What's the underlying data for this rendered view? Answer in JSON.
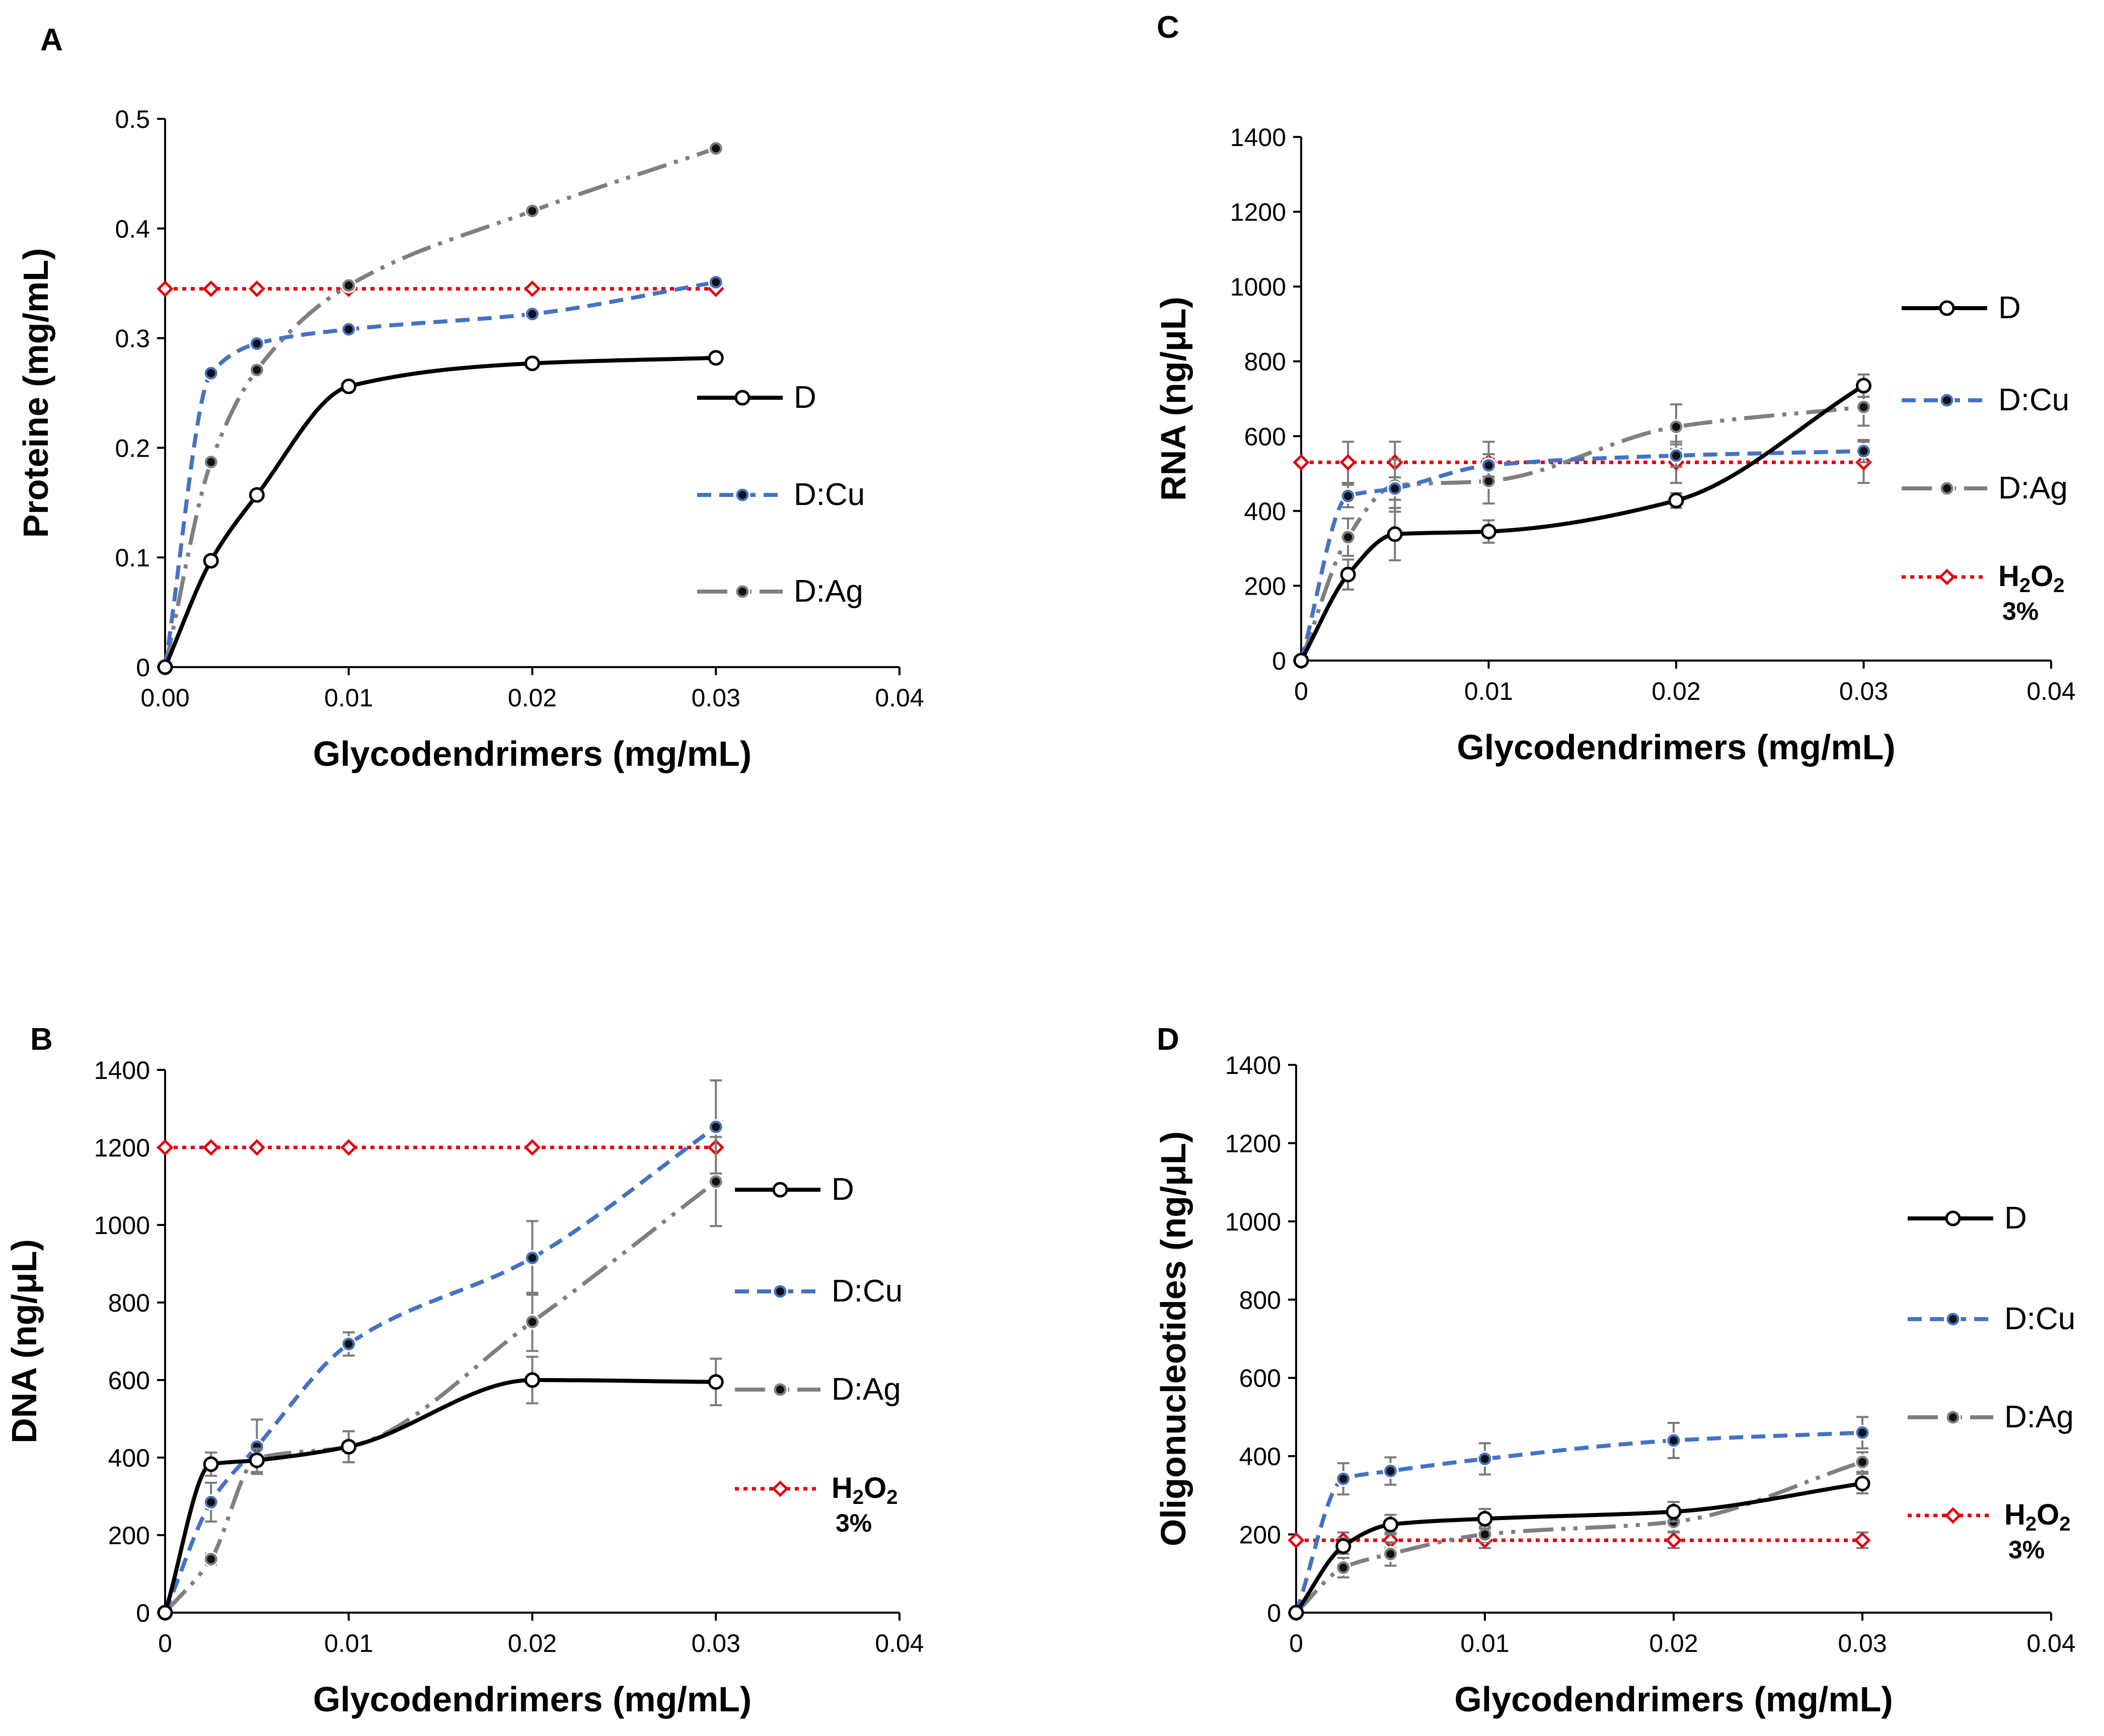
{
  "figure": {
    "colors": {
      "D": "#000000",
      "D:Cu": "#4472C4",
      "D:Ag": "#7F7F7F",
      "H2O2": "#E3000F"
    }
  },
  "chart_data": [
    {
      "panel": "A",
      "type": "line",
      "xlabel": "Glycodendrimers  (mg/mL)",
      "ylabel": "Proteine  (mg/mL)",
      "xlim": [
        0,
        0.04
      ],
      "xticks": [
        "0.00",
        "0.01",
        "0.02",
        "0.03",
        "0.04"
      ],
      "ylim": [
        0,
        0.5
      ],
      "yticks": [
        "0",
        "0.1",
        "0.2",
        "0.3",
        "0.4",
        "0.5"
      ],
      "x": [
        0,
        0.0025,
        0.005,
        0.01,
        0.02,
        0.03
      ],
      "series": [
        {
          "name": "D",
          "legend_label": "D",
          "values": [
            0,
            0.097,
            0.157,
            0.256,
            0.277,
            0.282
          ]
        },
        {
          "name": "D:Cu",
          "legend_label": "D:Cu",
          "values": [
            0,
            0.268,
            0.295,
            0.308,
            0.322,
            0.351
          ]
        },
        {
          "name": "D:Ag",
          "legend_label": "D:Ag",
          "values": [
            0,
            0.187,
            0.271,
            0.348,
            0.416,
            0.473
          ]
        },
        {
          "name": "H2O2",
          "legend_label": "",
          "values": [
            0.345,
            0.345,
            0.345,
            0.345,
            0.345,
            0.345
          ]
        }
      ]
    },
    {
      "panel": "B",
      "type": "line",
      "xlabel": "Glycodendrimers  (mg/mL)",
      "ylabel": "DNA  (ng/μL)",
      "xlim": [
        0,
        0.04
      ],
      "xticks": [
        "0",
        "0.01",
        "0.02",
        "0.03",
        "0.04"
      ],
      "ylim": [
        0,
        1400
      ],
      "yticks": [
        "0",
        "200",
        "400",
        "600",
        "800",
        "1000",
        "1200",
        "1400"
      ],
      "x": [
        0,
        0.0025,
        0.005,
        0.01,
        0.02,
        0.03
      ],
      "series": [
        {
          "name": "D",
          "legend_label": "D",
          "values": [
            0,
            383,
            393,
            428,
            600,
            595
          ],
          "errors": [
            0,
            30,
            30,
            40,
            60,
            60
          ]
        },
        {
          "name": "D:Cu",
          "legend_label": "D:Cu",
          "values": [
            0,
            285,
            428,
            693,
            915,
            1253
          ],
          "errors": [
            0,
            50,
            70,
            30,
            95,
            120
          ]
        },
        {
          "name": "D:Ag",
          "legend_label": "D:Ag",
          "values": [
            0,
            138,
            398,
            428,
            750,
            1112
          ],
          "errors": [
            0,
            15,
            40,
            40,
            75,
            115
          ]
        },
        {
          "name": "H2O2",
          "legend_label": "H2O2 3%",
          "values": [
            1200,
            1200,
            1200,
            1200,
            1200,
            1200
          ]
        }
      ]
    },
    {
      "panel": "C",
      "type": "line",
      "xlabel": "Glycodendrimers  (mg/mL)",
      "ylabel": "RNA  (ng/μL)",
      "xlim": [
        0,
        0.04
      ],
      "xticks": [
        "0",
        "0.01",
        "0.02",
        "0.03",
        "0.04"
      ],
      "ylim": [
        0,
        1400
      ],
      "yticks": [
        "0",
        "200",
        "400",
        "600",
        "800",
        "1000",
        "1200",
        "1400"
      ],
      "x": [
        0,
        0.0025,
        0.005,
        0.01,
        0.02,
        0.03
      ],
      "series": [
        {
          "name": "D",
          "legend_label": "D",
          "values": [
            0,
            230,
            338,
            345,
            428,
            735
          ],
          "errors": [
            0,
            40,
            70,
            30,
            20,
            30
          ]
        },
        {
          "name": "D:Cu",
          "legend_label": "D:Cu",
          "values": [
            0,
            440,
            460,
            522,
            548,
            560
          ],
          "errors": [
            0,
            30,
            30,
            30,
            30,
            30
          ]
        },
        {
          "name": "D:Ag",
          "legend_label": "D:Ag",
          "values": [
            0,
            330,
            468,
            480,
            625,
            678
          ],
          "errors": [
            0,
            50,
            70,
            60,
            60,
            50
          ]
        },
        {
          "name": "H2O2",
          "legend_label": "H2O2 3%",
          "values": [
            530,
            530,
            530,
            530,
            530,
            530
          ],
          "errors": [
            0,
            55,
            55,
            55,
            55,
            55
          ]
        }
      ]
    },
    {
      "panel": "D",
      "type": "line",
      "xlabel": "Glycodendrimers  (mg/mL)",
      "ylabel": "Oligonucleotides  (ng/μL)",
      "xlim": [
        0,
        0.04
      ],
      "xticks": [
        "0",
        "0.01",
        "0.02",
        "0.03",
        "0.04"
      ],
      "ylim": [
        0,
        1400
      ],
      "yticks": [
        "0",
        "200",
        "400",
        "600",
        "800",
        "1000",
        "1200",
        "1400"
      ],
      "x": [
        0,
        0.0025,
        0.005,
        0.01,
        0.02,
        0.03
      ],
      "series": [
        {
          "name": "D",
          "legend_label": "D",
          "values": [
            0,
            170,
            225,
            240,
            258,
            330
          ],
          "errors": [
            0,
            20,
            25,
            25,
            25,
            25
          ]
        },
        {
          "name": "D:Cu",
          "legend_label": "D:Cu",
          "values": [
            0,
            342,
            362,
            393,
            440,
            460
          ],
          "errors": [
            0,
            40,
            35,
            40,
            45,
            40
          ]
        },
        {
          "name": "D:Ag",
          "legend_label": "D:Ag",
          "values": [
            0,
            115,
            150,
            200,
            232,
            385
          ],
          "errors": [
            0,
            25,
            30,
            20,
            25,
            25
          ]
        },
        {
          "name": "H2O2",
          "legend_label": "H2O2 3%",
          "values": [
            185,
            185,
            185,
            185,
            185,
            185
          ],
          "errors": [
            0,
            20,
            20,
            20,
            20,
            20
          ]
        }
      ]
    }
  ]
}
